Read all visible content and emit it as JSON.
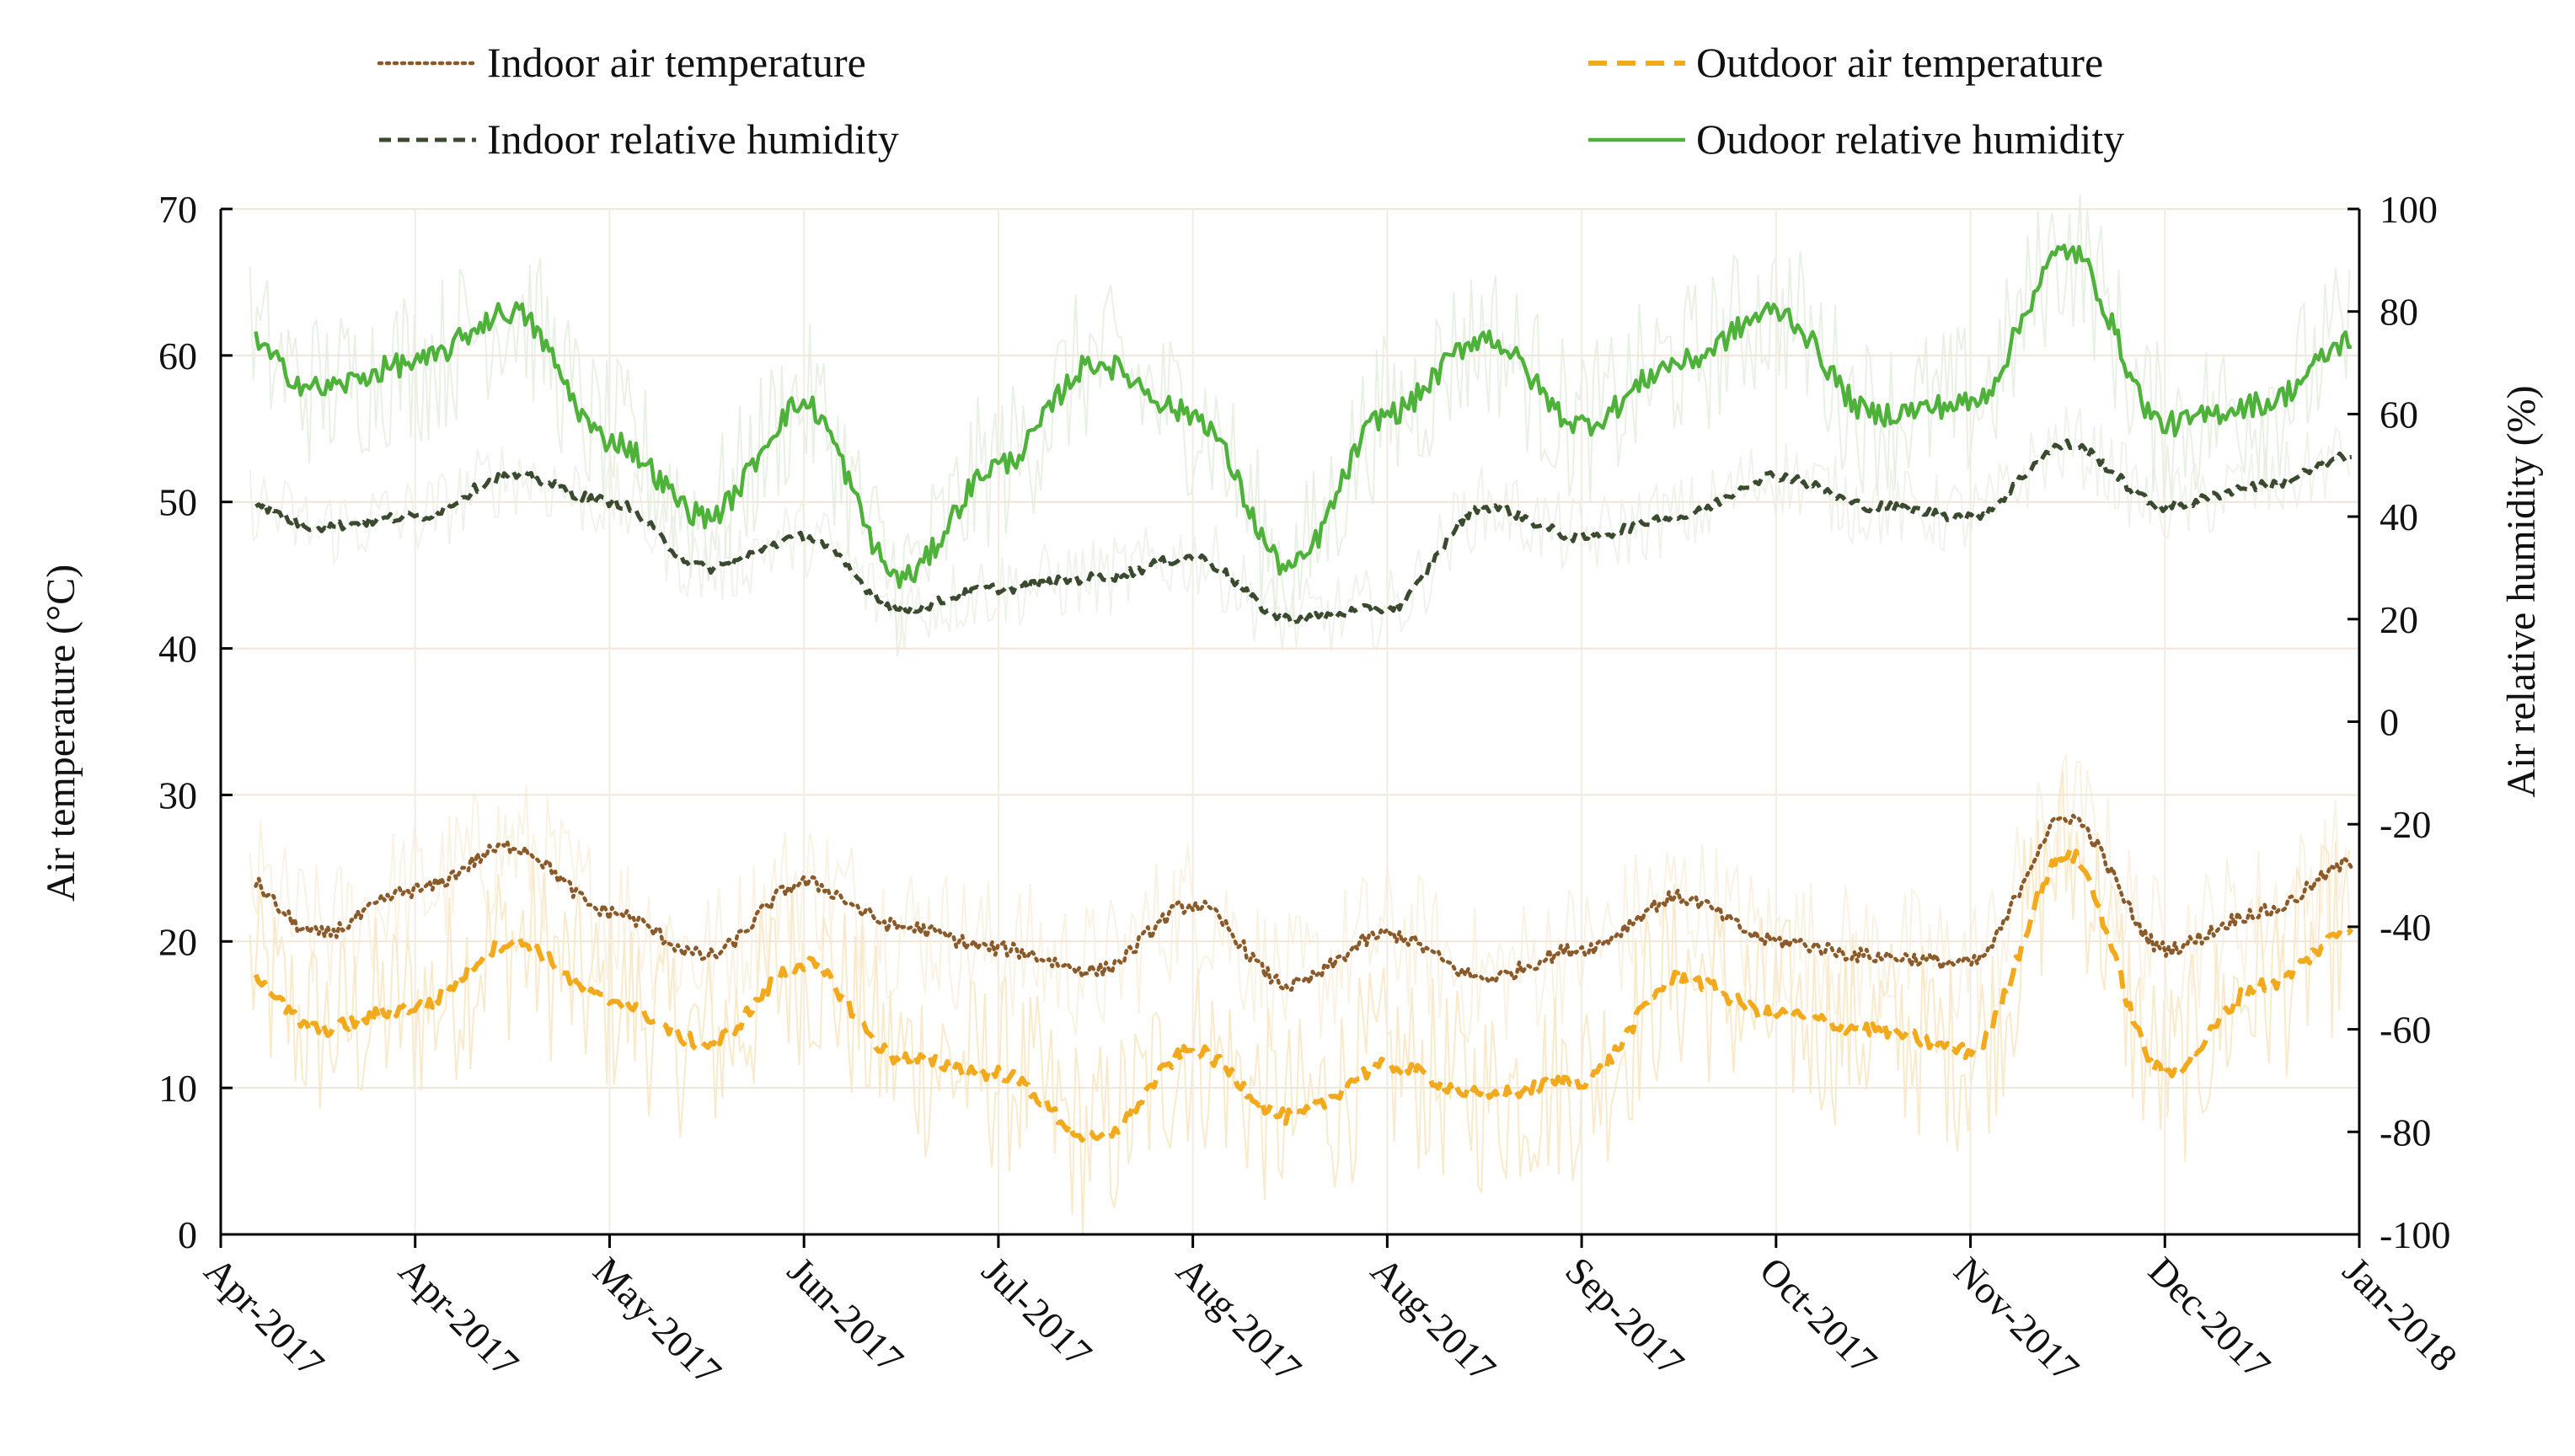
{
  "chart_data": {
    "type": "line",
    "title": "",
    "xlabel": "",
    "ylabel": "Air temperature (°C)",
    "y2label": "Air relative humidity (%)",
    "ylim": [
      0,
      70
    ],
    "y2lim": [
      -100,
      100
    ],
    "yticks": [
      "0",
      "10",
      "20",
      "30",
      "40",
      "50",
      "60",
      "70"
    ],
    "y2ticks": [
      "-100",
      "-80",
      "-60",
      "-40",
      "-20",
      "0",
      "20",
      "40",
      "60",
      "80",
      "100"
    ],
    "xticklabels": [
      "Apr-2017",
      "Apr-2017",
      "May-2017",
      "Jun-2017",
      "Jul-2017",
      "Aug-2017",
      "Aug-2017",
      "Sep-2017",
      "Oct-2017",
      "Nov-2017",
      "Dec-2017",
      "Jan-2018"
    ],
    "legend": [
      {
        "name": "Indoor air temperature",
        "color": "#8B5A2B",
        "style": "dotted"
      },
      {
        "name": "Outdoor air temperature",
        "color": "#F2A91C",
        "style": "dashed"
      },
      {
        "name": "Indoor relative humidity",
        "color": "#3A4A2E",
        "style": "dashed"
      },
      {
        "name": "Oudoor relative humidity",
        "color": "#4DB13A",
        "style": "solid"
      }
    ],
    "x": [
      0,
      0.5,
      1,
      1.5,
      2,
      2.5,
      3,
      3.5,
      4,
      4.5,
      5,
      5.5,
      6,
      6.5,
      7,
      7.5,
      8,
      8.5,
      9,
      9.5,
      10,
      10.5,
      11
    ],
    "series": [
      {
        "name": "Indoor air temperature",
        "axis": "left",
        "values": [
          25.5,
          20.5,
          23.5,
          26.5,
          22,
          19,
          24,
          21,
          19.5,
          18,
          22.5,
          17,
          20.5,
          17.5,
          19.5,
          23,
          20,
          19,
          18.5,
          28.5,
          19.5,
          22,
          25.5
        ]
      },
      {
        "name": "Outdoor air temperature",
        "axis": "left",
        "values": [
          19.5,
          14,
          15.5,
          20,
          16,
          13,
          18.5,
          12,
          11,
          6.5,
          12.5,
          8,
          11.5,
          9.5,
          10.5,
          17.5,
          15,
          14,
          12.5,
          26,
          11,
          17,
          21
        ]
      },
      {
        "name": "Indoor relative humidity",
        "axis": "right",
        "values": [
          45,
          38,
          40,
          48,
          43,
          30,
          36,
          22,
          26,
          28,
          32,
          20,
          22,
          42,
          36,
          40,
          48,
          42,
          40,
          54,
          42,
          46,
          52
        ]
      },
      {
        "name": "Oudoor relative humidity",
        "axis": "right",
        "values": [
          78,
          65,
          70,
          80,
          55,
          40,
          62,
          28,
          50,
          70,
          60,
          30,
          60,
          75,
          58,
          70,
          80,
          60,
          62,
          92,
          58,
          62,
          75
        ]
      }
    ]
  }
}
